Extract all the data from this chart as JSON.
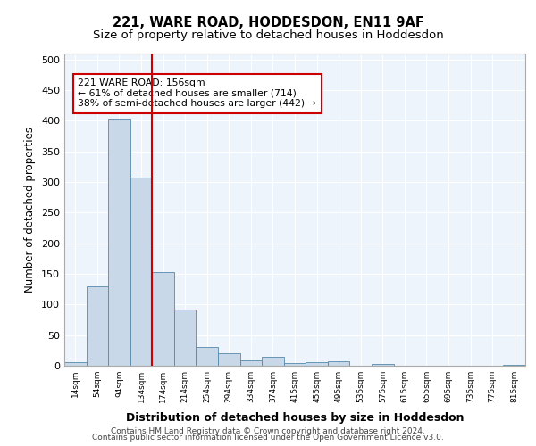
{
  "title1": "221, WARE ROAD, HODDESDON, EN11 9AF",
  "title2": "Size of property relative to detached houses in Hoddesdon",
  "xlabel": "Distribution of detached houses by size in Hoddesdon",
  "ylabel": "Number of detached properties",
  "bar_labels": [
    "14sqm",
    "54sqm",
    "94sqm",
    "134sqm",
    "174sqm",
    "214sqm",
    "254sqm",
    "294sqm",
    "334sqm",
    "374sqm",
    "415sqm",
    "455sqm",
    "495sqm",
    "535sqm",
    "575sqm",
    "615sqm",
    "655sqm",
    "695sqm",
    "735sqm",
    "775sqm",
    "815sqm"
  ],
  "bar_values": [
    6,
    130,
    403,
    308,
    153,
    92,
    30,
    21,
    9,
    14,
    5,
    6,
    8,
    0,
    3,
    0,
    0,
    0,
    0,
    0,
    2
  ],
  "bar_color": "#c8d8e8",
  "bar_edge_color": "#5588aa",
  "vline_x": 3.5,
  "vline_color": "#cc0000",
  "annotation_text": "221 WARE ROAD: 156sqm\n← 61% of detached houses are smaller (714)\n38% of semi-detached houses are larger (442) →",
  "annotation_box_color": "#ffffff",
  "annotation_box_edge": "#cc0000",
  "ylim": [
    0,
    510
  ],
  "yticks": [
    0,
    50,
    100,
    150,
    200,
    250,
    300,
    350,
    400,
    450,
    500
  ],
  "bg_color": "#eef4fb",
  "footer1": "Contains HM Land Registry data © Crown copyright and database right 2024.",
  "footer2": "Contains public sector information licensed under the Open Government Licence v3.0."
}
